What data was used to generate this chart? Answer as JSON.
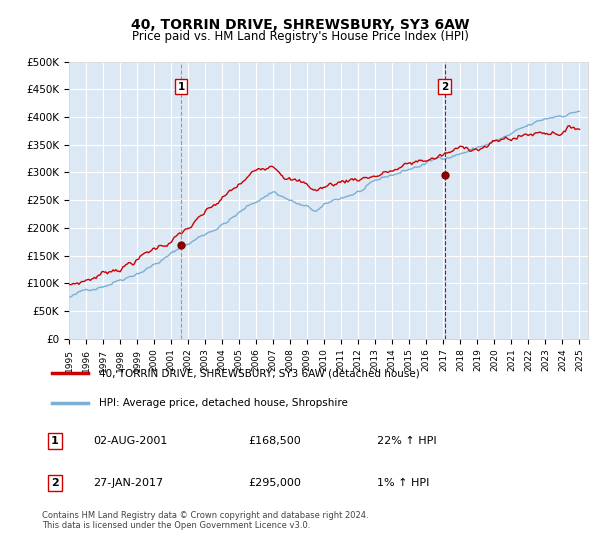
{
  "title": "40, TORRIN DRIVE, SHREWSBURY, SY3 6AW",
  "subtitle": "Price paid vs. HM Land Registry's House Price Index (HPI)",
  "ylabel_ticks": [
    "£0",
    "£50K",
    "£100K",
    "£150K",
    "£200K",
    "£250K",
    "£300K",
    "£350K",
    "£400K",
    "£450K",
    "£500K"
  ],
  "ytick_values": [
    0,
    50000,
    100000,
    150000,
    200000,
    250000,
    300000,
    350000,
    400000,
    450000,
    500000
  ],
  "xlim_start": 1995,
  "xlim_end": 2025.5,
  "ylim_min": 0,
  "ylim_max": 500000,
  "sale1_date": "02-AUG-2001",
  "sale1_x": 2001.58,
  "sale1_price": 168500,
  "sale1_hpi_pct": "22%",
  "sale2_date": "27-JAN-2017",
  "sale2_x": 2017.07,
  "sale2_price": 295000,
  "sale2_hpi_pct": "1%",
  "legend_label_red": "40, TORRIN DRIVE, SHREWSBURY, SY3 6AW (detached house)",
  "legend_label_blue": "HPI: Average price, detached house, Shropshire",
  "footer": "Contains HM Land Registry data © Crown copyright and database right 2024.\nThis data is licensed under the Open Government Licence v3.0.",
  "bg_color": "#dce9f5",
  "red_line_color": "#cc0000",
  "blue_line_color": "#7bafd4",
  "vline1_color": "#aaaaaa",
  "vline2_color": "#cc0000",
  "marker_color_red": "#880000",
  "grid_color": "#ffffff",
  "box_color": "#cc0000"
}
